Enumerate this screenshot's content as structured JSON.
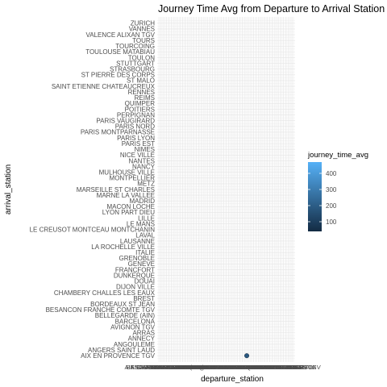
{
  "chart_data": {
    "type": "scatter",
    "title": "Journey Time Avg from Departure to Arrival Station",
    "xlabel": "departure_station",
    "ylabel": "arrival_station",
    "categories_y": [
      "AIX EN PROVENCE TGV",
      "ANGERS SAINT LAUD",
      "ANGOULEME",
      "ANNECY",
      "ARRAS",
      "AVIGNON TGV",
      "BARCELONA",
      "BELLEGARDE (AIN)",
      "BESANCON FRANCHE COMTE TGV",
      "BORDEAUX ST JEAN",
      "BREST",
      "CHAMBERY CHALLES LES EAUX",
      "DIJON VILLE",
      "DOUAI",
      "DUNKERQUE",
      "FRANCFORT",
      "GENEVE",
      "GRENOBLE",
      "ITALIE",
      "LA ROCHELLE VILLE",
      "LAUSANNE",
      "LAVAL",
      "LE CREUSOT MONTCEAU MONTCHANIN",
      "LE MANS",
      "LILLE",
      "LYON PART DIEU",
      "MACON LOCHE",
      "MADRID",
      "MARNE LA VALLEE",
      "MARSEILLE ST CHARLES",
      "METZ",
      "MONTPELLIER",
      "MULHOUSE VILLE",
      "NANCY",
      "NANTES",
      "NICE VILLE",
      "NIMES",
      "PARIS EST",
      "PARIS LYON",
      "PARIS MONTPARNASSE",
      "PARIS NORD",
      "PARIS VAUGIRARD",
      "PERPIGNAN",
      "POITIERS",
      "QUIMPER",
      "REIMS",
      "RENNES",
      "SAINT ETIENNE CHATEAUCREUX",
      "ST MALO",
      "ST PIERRE DES CORPS",
      "STRASBOURG",
      "STUTTGART",
      "TOULON",
      "TOULOUSE MATABIAU",
      "TOURCOING",
      "TOURS",
      "VALENCE ALIXAN TGV",
      "VANNES",
      "ZURICH"
    ],
    "x_tick_labels": [
      "AIX EN PROVENCE TGV",
      "ANGERS SAINT LAUD",
      "ANGOULEME",
      "ANNECY",
      "ARRAS",
      "AVIGNON TGV",
      "BARCELONA",
      "BELLEGARDE (AIN)",
      "BESANCON FRANCHE COMTE TGV",
      "BORDEAUX ST JEAN",
      "BREST",
      "CHAMBERY CHALLES LES EAUX",
      "DIJON VILLE",
      "DOUAI",
      "DUNKERQUE",
      "FRANCFORT",
      "GENEVE",
      "GRENOBLE",
      "ITALIE",
      "LA ROCHELLE VILLE",
      "LAUSANNE",
      "LAVAL",
      "LE CREUSOT MONTCEAU MONTCHANIN",
      "LE MANS",
      "LILLE",
      "LYON PART DIEU",
      "MACON LOCHE",
      "MADRID",
      "MARNE LA VALLEE",
      "MARSEILLE ST CHARLES",
      "METZ",
      "MONTPELLIER",
      "MULHOUSE VILLE",
      "NANCY",
      "NANTES",
      "NICE VILLE",
      "NIMES",
      "PARIS EST",
      "PARIS LYON",
      "PARIS MONTPARNASSE",
      "PARIS NORD",
      "PARIS VAUGIRARD",
      "PERPIGNAN",
      "POITIERS",
      "QUIMPER",
      "REIMS",
      "RENNES",
      "SAINT ETIENNE CHATEAUCREUX",
      "ST MALO",
      "ST PIERRE DES CORPS",
      "STRASBOURG",
      "STUTTGART",
      "TOULON",
      "TOULOUSE MATABIAU",
      "TOURCOING",
      "TOURS",
      "VALENCE ALIXAN TGV",
      "VANNES",
      "ZURICH"
    ],
    "points": [
      {
        "x": "PARIS LYON",
        "y": "AIX EN PROVENCE TGV",
        "value": 185
      }
    ],
    "color_scale": {
      "name": "journey_time_avg",
      "low_color": "#132B43",
      "high_color": "#56B1F7",
      "range": [
        40,
        470
      ],
      "ticks": [
        100,
        200,
        300,
        400
      ]
    },
    "grid": true,
    "legend_position": "right"
  }
}
